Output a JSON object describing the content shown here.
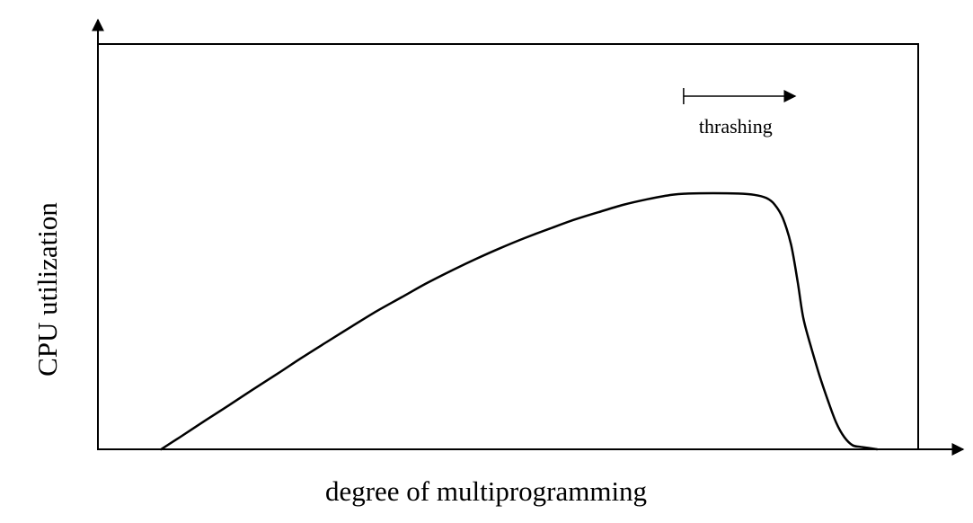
{
  "chart_data": {
    "type": "line",
    "title": "",
    "xlabel": "degree of multiprogramming",
    "ylabel": "CPU utilization",
    "xticks": [],
    "yticks": [],
    "grid": false,
    "legend": false,
    "xlim": [
      0,
      100
    ],
    "ylim": [
      0,
      100
    ],
    "series": [
      {
        "values_xy": [
          [
            7.7,
            0.0
          ],
          [
            10,
            3.0
          ],
          [
            13,
            7.0
          ],
          [
            16,
            10.9
          ],
          [
            19,
            14.9
          ],
          [
            22,
            18.8
          ],
          [
            25,
            22.8
          ],
          [
            28,
            26.6
          ],
          [
            31,
            30.4
          ],
          [
            34,
            34.1
          ],
          [
            37,
            37.5
          ],
          [
            40,
            40.9
          ],
          [
            43,
            44.0
          ],
          [
            46,
            46.9
          ],
          [
            49,
            49.6
          ],
          [
            52,
            52.1
          ],
          [
            55,
            54.4
          ],
          [
            58,
            56.6
          ],
          [
            61,
            58.5
          ],
          [
            64,
            60.3
          ],
          [
            67,
            61.7
          ],
          [
            70,
            62.8
          ],
          [
            72,
            63.1
          ],
          [
            75,
            63.2
          ],
          [
            78,
            63.1
          ],
          [
            80,
            62.8
          ],
          [
            81.5,
            62.0
          ],
          [
            82.5,
            60.4
          ],
          [
            83.5,
            57.0
          ],
          [
            84.5,
            50.5
          ],
          [
            85.3,
            41.4
          ],
          [
            86,
            32.3
          ],
          [
            87,
            24.8
          ],
          [
            88,
            18.0
          ],
          [
            89,
            12.0
          ],
          [
            90,
            6.6
          ],
          [
            91,
            3.0
          ],
          [
            92,
            1.0
          ],
          [
            93,
            0.6
          ],
          [
            95,
            0.0
          ]
        ]
      }
    ],
    "annotations": [
      {
        "text": "thrashing",
        "arrow": "right",
        "x_start": 71.4,
        "x_end": 85
      }
    ]
  }
}
